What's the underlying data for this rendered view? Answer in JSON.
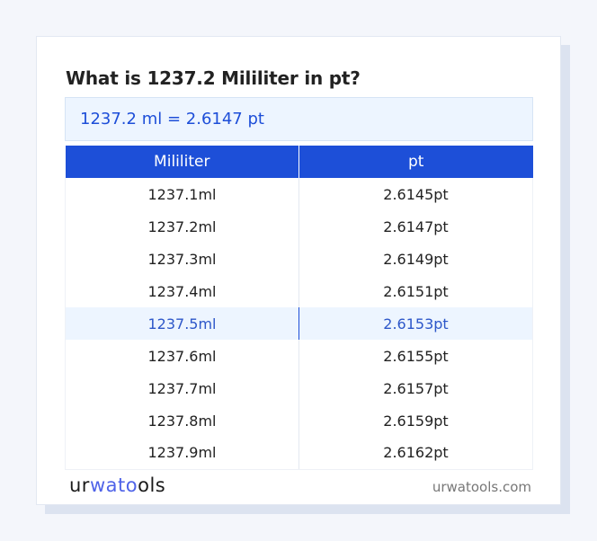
{
  "title": "What is 1237.2 Mililiter in pt?",
  "result": "1237.2 ml = 2.6147 pt",
  "table": {
    "headers": [
      "Mililiter",
      "pt"
    ],
    "rows": [
      [
        "1237.1ml",
        "2.6145pt"
      ],
      [
        "1237.2ml",
        "2.6147pt"
      ],
      [
        "1237.3ml",
        "2.6149pt"
      ],
      [
        "1237.4ml",
        "2.6151pt"
      ],
      [
        "1237.5ml",
        "2.6153pt"
      ],
      [
        "1237.6ml",
        "2.6155pt"
      ],
      [
        "1237.7ml",
        "2.6157pt"
      ],
      [
        "1237.8ml",
        "2.6159pt"
      ],
      [
        "1237.9ml",
        "2.6162pt"
      ]
    ],
    "highlighted_row": 4
  },
  "footer": {
    "logo_a": "ur",
    "logo_b": "wato",
    "logo_c": "ols",
    "site": "urwatools.com"
  },
  "colors": {
    "accent": "#1d4fd8",
    "highlight_bg": "#edf5ff"
  }
}
